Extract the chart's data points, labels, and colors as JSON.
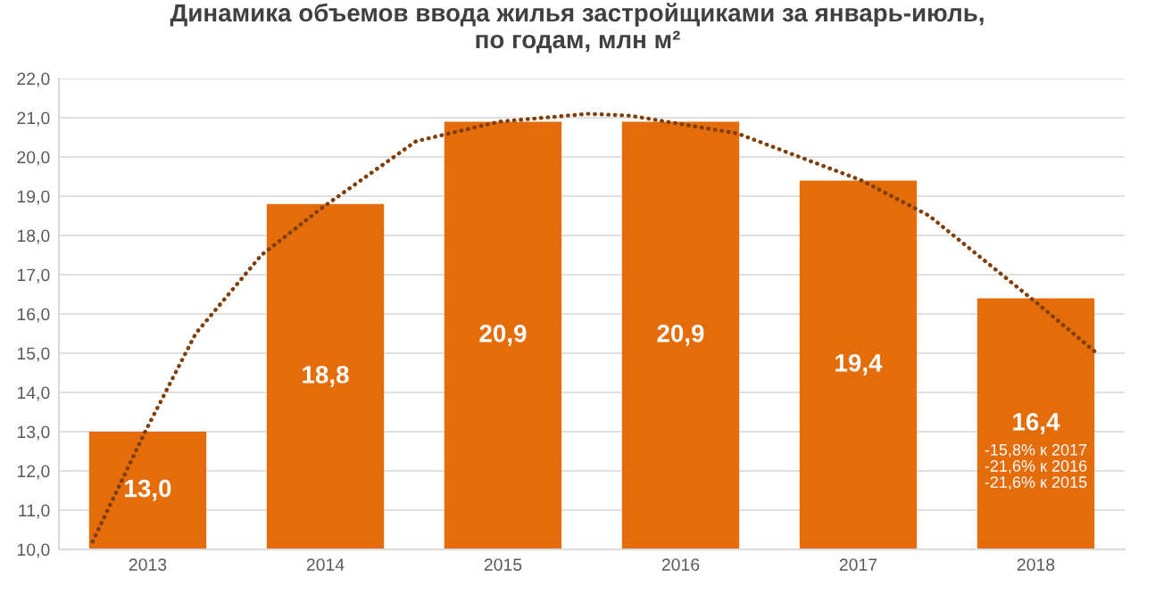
{
  "chart_data": {
    "type": "bar",
    "title": "Динамика объемов ввода жилья застройщиками за январь-июль,\nпо годам, млн м²",
    "x": [
      2013,
      2014,
      2015,
      2016,
      2017,
      2018
    ],
    "series": [
      {
        "color": "#e46c0a",
        "values": [
          13.0,
          18.8,
          20.9,
          20.9,
          19.4,
          16.4
        ],
        "value_labels": [
          "13,0",
          "18,8",
          "20,9",
          "20,9",
          "19,4",
          "16,4"
        ]
      },
      {
        "type": "line",
        "color": "#7f3f0a",
        "line_style": "dotted",
        "x": [
          2012.69,
          2012.98,
          2013.27,
          2013.64,
          2013.98,
          2014.51,
          2014.98,
          2015.48,
          2015.72,
          2016.32,
          2017.02,
          2017.4,
          2018.0,
          2018.33
        ],
        "values": [
          10.2,
          12.95,
          15.5,
          17.5,
          18.7,
          20.4,
          20.9,
          21.1,
          21.05,
          20.6,
          19.4,
          18.5,
          16.3,
          15.05
        ]
      }
    ],
    "annotations": [
      "-15,8% к 2017\n-21,6% к 2016\n-21,6% к 2015"
    ],
    "xlim": [
      2012.5,
      2018.5
    ],
    "xticks": [
      2013,
      2014,
      2015,
      2016,
      2017,
      2018
    ],
    "ylim": [
      10.0,
      22.0
    ],
    "yticks": [
      {
        "value": 10,
        "label": "10,0"
      },
      {
        "value": 11,
        "label": "11,0"
      },
      {
        "value": 12,
        "label": "12,0"
      },
      {
        "value": 13,
        "label": "13,0"
      },
      {
        "value": 14,
        "label": "14,0"
      },
      {
        "value": 15,
        "label": "15,0"
      },
      {
        "value": 16,
        "label": "16,0"
      },
      {
        "value": 17,
        "label": "17,0"
      },
      {
        "value": 18,
        "label": "18,0"
      },
      {
        "value": 19,
        "label": "19,0"
      },
      {
        "value": 20,
        "label": "20,0"
      },
      {
        "value": 21,
        "label": "21,0"
      },
      {
        "value": 22,
        "label": "22,0"
      }
    ],
    "grid": "y"
  }
}
